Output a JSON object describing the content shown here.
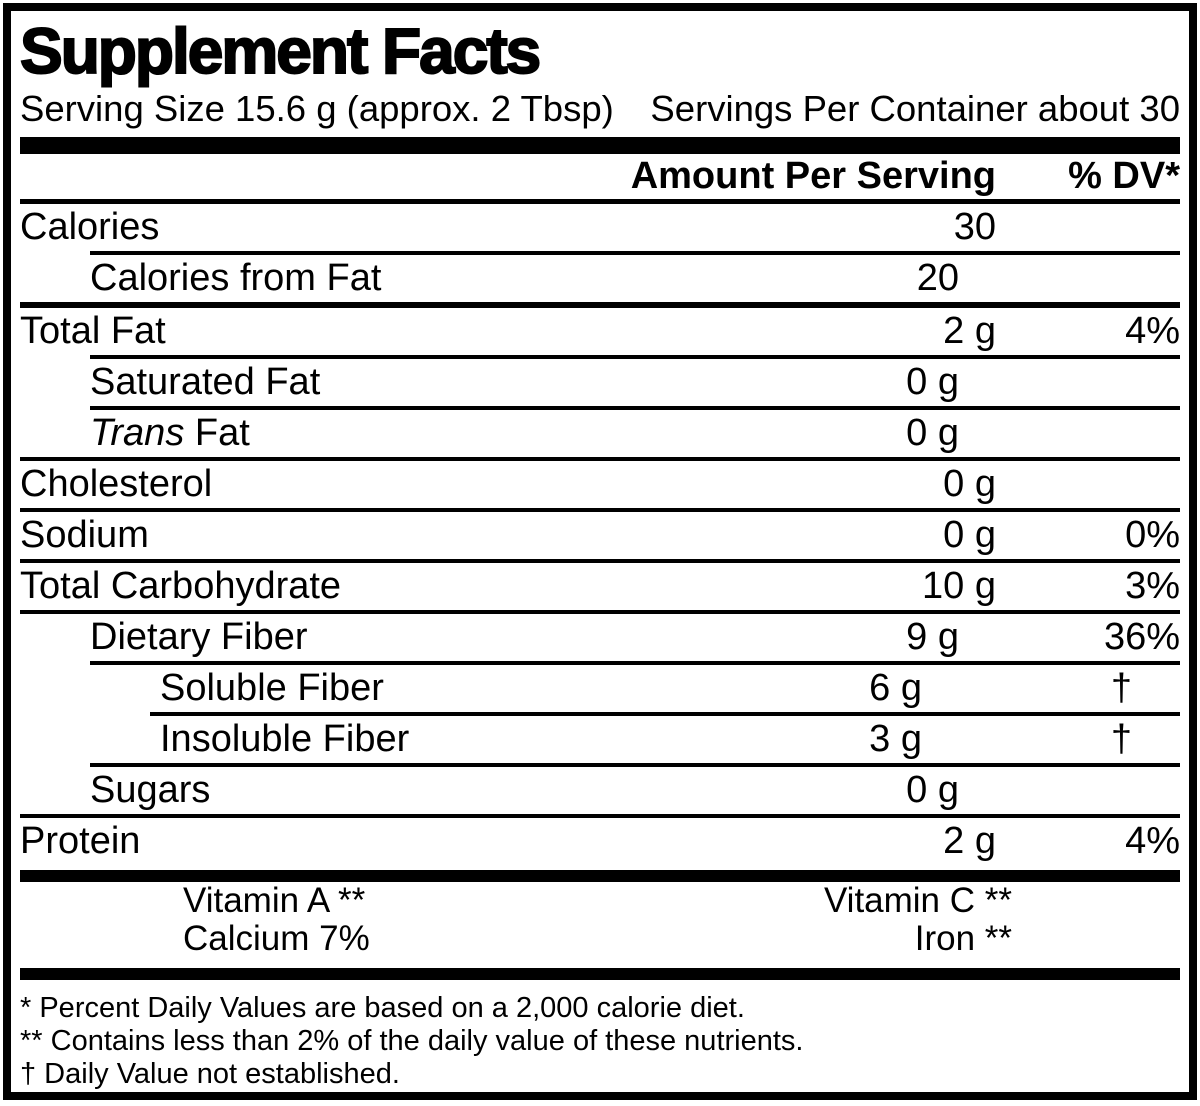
{
  "title": "Supplement Facts",
  "serving_line": {
    "serving_size": "Serving Size 15.6 g (approx. 2 Tbsp)",
    "servings_per_container": "Servings Per Container about 30"
  },
  "column_headers": {
    "amount": "Amount Per Serving",
    "daily_value": "% DV*"
  },
  "nutrient_rows": [
    {
      "label": "Calories",
      "amount": "30",
      "dv": "",
      "indent": 0,
      "sep": "none",
      "sep_weight": "none"
    },
    {
      "label": "Calories from Fat",
      "amount": "20",
      "dv": "",
      "indent": 1,
      "sep": "l1",
      "sep_weight": "thin"
    },
    {
      "label": "Total Fat",
      "amount": "2 g",
      "dv": "4%",
      "indent": 0,
      "sep": "full",
      "sep_weight": "medium"
    },
    {
      "label": "Saturated Fat",
      "amount": "0 g",
      "dv": "",
      "indent": 1,
      "sep": "l1",
      "sep_weight": "thin"
    },
    {
      "label": "Trans Fat",
      "italic_prefix": "Trans",
      "amount": "0 g",
      "dv": "",
      "indent": 1,
      "sep": "l1",
      "sep_weight": "thin"
    },
    {
      "label": "Cholesterol",
      "amount": "0 g",
      "dv": "",
      "indent": 0,
      "sep": "full",
      "sep_weight": "thin"
    },
    {
      "label": "Sodium",
      "amount": "0 g",
      "dv": "0%",
      "indent": 0,
      "sep": "full",
      "sep_weight": "thin"
    },
    {
      "label": "Total Carbohydrate",
      "amount": "10 g",
      "dv": "3%",
      "indent": 0,
      "sep": "full",
      "sep_weight": "thin"
    },
    {
      "label": "Dietary Fiber",
      "amount": "9 g",
      "dv": "36%",
      "indent": 1,
      "sep": "full",
      "sep_weight": "thin"
    },
    {
      "label": "Soluble Fiber",
      "amount": "6 g",
      "dv": "†",
      "indent": 2,
      "sep": "l1",
      "sep_weight": "thin"
    },
    {
      "label": "Insoluble Fiber",
      "amount": "3 g",
      "dv": "†",
      "indent": 2,
      "sep": "l2",
      "sep_weight": "thin"
    },
    {
      "label": "Sugars",
      "amount": "0 g",
      "dv": "",
      "indent": 1,
      "sep": "l1",
      "sep_weight": "thin"
    },
    {
      "label": "Protein",
      "amount": "2 g",
      "dv": "4%",
      "indent": 0,
      "sep": "full",
      "sep_weight": "thin"
    }
  ],
  "vitamin_rows": [
    {
      "left": "Vitamin A **",
      "right": "Vitamin C **"
    },
    {
      "left": "Calcium 7%",
      "right": "Iron **"
    }
  ],
  "footnotes": [
    "* Percent Daily Values are based on a 2,000 calorie diet.",
    "** Contains less than 2% of the daily value of these nutrients.",
    "† Daily Value not established."
  ],
  "colors": {
    "ink": "#000000",
    "paper": "#ffffff"
  }
}
